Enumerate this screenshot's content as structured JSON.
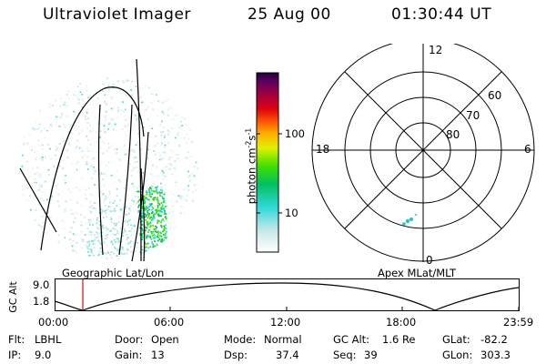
{
  "header": {
    "instrument": "Ultraviolet Imager",
    "date": "25 Aug 00",
    "time": "01:30:44 UT"
  },
  "geo_panel": {
    "caption": "Geographic Lat/Lon"
  },
  "apex_panel": {
    "caption": "Apex MLat/MLT",
    "mlt_labels": [
      "12",
      "18",
      "6",
      "0"
    ],
    "mlat_labels": [
      "60",
      "70",
      "80"
    ]
  },
  "colorbar": {
    "unit_main": "photon cm",
    "unit_sup1": "-2",
    "unit_mid": "s",
    "unit_sup2": "-1",
    "ticks": [
      "100",
      "10"
    ],
    "scale": "log"
  },
  "altitude_strip": {
    "ylabel": "GC Alt",
    "y_ticks": [
      "9.0",
      "1.8"
    ],
    "x_ticks": [
      "00:00",
      "06:00",
      "12:00",
      "18:00",
      "23:59"
    ],
    "marker_time": "01:30:44"
  },
  "footer": {
    "row1": [
      {
        "k": "Flt:",
        "v": "LBHL"
      },
      {
        "k": "Door:",
        "v": "Open"
      },
      {
        "k": "Mode:",
        "v": "Normal"
      },
      {
        "k": "GC Alt:",
        "v": "1.6 Re"
      },
      {
        "k": "GLat:",
        "v": "-82.2"
      }
    ],
    "row2": [
      {
        "k": "IP:",
        "v": "9.0"
      },
      {
        "k": "Gain:",
        "v": "13"
      },
      {
        "k": "Dsp:",
        "v": "37.4"
      },
      {
        "k": "Seq:",
        "v": "39"
      },
      {
        "k": "GLon:",
        "v": "303.3"
      }
    ]
  },
  "colors": {
    "marker": "#d01010",
    "colorbar_stops": [
      "#ffffff",
      "#c8e8e8",
      "#30d8d8",
      "#00c060",
      "#40e000",
      "#e0f000",
      "#ffb000",
      "#ff6000",
      "#e00010",
      "#a00040",
      "#600060",
      "#200040"
    ]
  }
}
